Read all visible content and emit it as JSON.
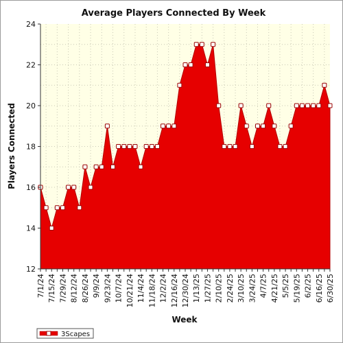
{
  "chart_data": {
    "type": "area",
    "title": "Average Players Connected By Week",
    "xlabel": "Week",
    "ylabel": "Players Connected",
    "ylim": [
      12,
      24
    ],
    "yticks": [
      12,
      14,
      16,
      18,
      20,
      22,
      24
    ],
    "grid": true,
    "legend_position": "bottom-left",
    "x": [
      "7/1/24",
      "7/8/24",
      "7/15/24",
      "7/22/24",
      "7/29/24",
      "8/5/24",
      "8/12/24",
      "8/19/24",
      "8/26/24",
      "9/2/24",
      "9/9/24",
      "9/16/24",
      "9/23/24",
      "9/30/24",
      "10/7/24",
      "10/14/24",
      "10/21/24",
      "10/28/24",
      "11/4/24",
      "11/11/24",
      "11/18/24",
      "11/25/24",
      "12/2/24",
      "12/9/24",
      "12/16/24",
      "12/23/24",
      "12/30/24",
      "1/6/25",
      "1/13/25",
      "1/20/25",
      "1/27/25",
      "2/3/25",
      "2/10/25",
      "2/17/25",
      "2/24/25",
      "3/3/25",
      "3/10/25",
      "3/17/25",
      "3/24/25",
      "3/31/25",
      "4/7/25",
      "4/14/25",
      "4/21/25",
      "4/28/25",
      "5/5/25",
      "5/12/25",
      "5/19/25",
      "5/26/25",
      "6/2/25",
      "6/9/25",
      "6/16/25",
      "6/23/25",
      "6/30/25"
    ],
    "x_tick_labels": [
      "7/1/24",
      "7/15/24",
      "7/29/24",
      "8/12/24",
      "8/26/24",
      "9/9/24",
      "9/23/24",
      "10/7/24",
      "10/21/24",
      "11/4/24",
      "11/18/24",
      "12/2/24",
      "12/16/24",
      "12/30/24",
      "1/13/25",
      "1/27/25",
      "2/10/25",
      "2/24/25",
      "3/10/25",
      "3/24/25",
      "4/7/25",
      "4/21/25",
      "5/5/25",
      "5/19/25",
      "6/2/25",
      "6/16/25",
      "6/30/25"
    ],
    "series": [
      {
        "name": "3Scapes",
        "color": "#e60000",
        "values": [
          16,
          15,
          14,
          15,
          15,
          16,
          16,
          15,
          17,
          16,
          17,
          17,
          19,
          17,
          18,
          18,
          18,
          18,
          17,
          18,
          18,
          18,
          19,
          19,
          19,
          21,
          22,
          22,
          23,
          23,
          22,
          23,
          20,
          18,
          18,
          18,
          20,
          19,
          18,
          19,
          19,
          20,
          19,
          18,
          18,
          19,
          20,
          20,
          20,
          20,
          20,
          21,
          20
        ]
      }
    ],
    "colors": {
      "plot_background": "#ffffe6",
      "grid": "#c8c8b4",
      "area_fill": "#e60000",
      "marker_fill": "#ffffff",
      "marker_stroke": "#990000"
    }
  }
}
